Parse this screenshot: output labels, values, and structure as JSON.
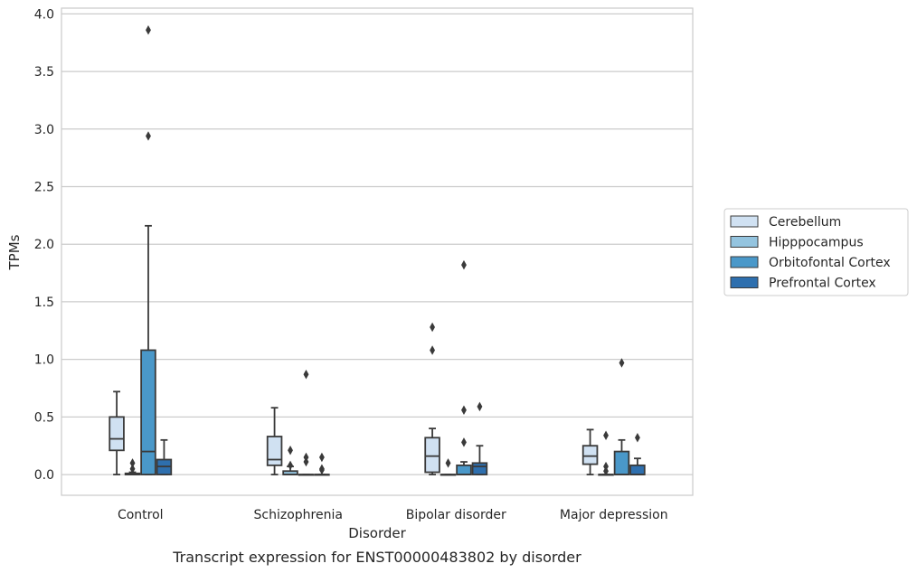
{
  "chart_data": {
    "type": "box",
    "xlabel": "Disorder",
    "ylabel": "TPMs",
    "caption": "Transcript expression for ENST00000483802 by disorder",
    "ylim": [
      -0.18,
      4.05
    ],
    "yticks": [
      "0.0",
      "0.5",
      "1.0",
      "1.5",
      "2.0",
      "2.5",
      "3.0",
      "3.5",
      "4.0"
    ],
    "grid": "horizontal",
    "legend_position": "right",
    "categories": [
      "Control",
      "Schizophrenia",
      "Bipolar disorder",
      "Major depression"
    ],
    "series": [
      {
        "name": "Cerebellum",
        "color": "#d0e1f2",
        "boxes": [
          {
            "min": 0.0,
            "q1": 0.21,
            "median": 0.31,
            "q3": 0.5,
            "max": 0.72,
            "outliers": []
          },
          {
            "min": 0.0,
            "q1": 0.08,
            "median": 0.13,
            "q3": 0.33,
            "max": 0.58,
            "outliers": []
          },
          {
            "min": 0.0,
            "q1": 0.02,
            "median": 0.16,
            "q3": 0.32,
            "max": 0.4,
            "outliers": [
              1.08,
              1.28
            ]
          },
          {
            "min": 0.0,
            "q1": 0.09,
            "median": 0.16,
            "q3": 0.25,
            "max": 0.39,
            "outliers": []
          }
        ]
      },
      {
        "name": "Hipppocampus",
        "color": "#94c4df",
        "boxes": [
          {
            "min": 0.0,
            "q1": 0.0,
            "median": 0.0,
            "q3": 0.01,
            "max": 0.02,
            "outliers": [
              0.05,
              0.1
            ]
          },
          {
            "min": 0.0,
            "q1": 0.0,
            "median": 0.0,
            "q3": 0.03,
            "max": 0.07,
            "outliers": [
              0.08,
              0.21
            ]
          },
          {
            "min": 0.0,
            "q1": 0.0,
            "median": 0.0,
            "q3": 0.0,
            "max": 0.0,
            "outliers": [
              0.1
            ]
          },
          {
            "min": 0.0,
            "q1": 0.0,
            "median": 0.0,
            "q3": 0.0,
            "max": 0.0,
            "outliers": [
              0.03,
              0.07,
              0.34
            ]
          }
        ]
      },
      {
        "name": "Orbitofontal Cortex",
        "color": "#4a98c9",
        "boxes": [
          {
            "min": 0.0,
            "q1": 0.0,
            "median": 0.2,
            "q3": 1.08,
            "max": 2.16,
            "outliers": [
              2.94,
              3.86
            ]
          },
          {
            "min": 0.0,
            "q1": 0.0,
            "median": 0.0,
            "q3": 0.0,
            "max": 0.0,
            "outliers": [
              0.11,
              0.15,
              0.87
            ]
          },
          {
            "min": 0.0,
            "q1": 0.0,
            "median": 0.0,
            "q3": 0.08,
            "max": 0.11,
            "outliers": [
              0.28,
              0.56,
              1.82
            ]
          },
          {
            "min": 0.0,
            "q1": 0.0,
            "median": 0.0,
            "q3": 0.2,
            "max": 0.3,
            "outliers": [
              0.97
            ]
          }
        ]
      },
      {
        "name": "Prefrontal Cortex",
        "color": "#2e6fae",
        "boxes": [
          {
            "min": 0.0,
            "q1": 0.0,
            "median": 0.07,
            "q3": 0.13,
            "max": 0.3,
            "outliers": []
          },
          {
            "min": 0.0,
            "q1": 0.0,
            "median": 0.0,
            "q3": 0.0,
            "max": 0.0,
            "outliers": [
              0.04,
              0.05,
              0.15
            ]
          },
          {
            "min": 0.0,
            "q1": 0.0,
            "median": 0.07,
            "q3": 0.1,
            "max": 0.25,
            "outliers": [
              0.59
            ]
          },
          {
            "min": 0.0,
            "q1": 0.0,
            "median": 0.0,
            "q3": 0.08,
            "max": 0.14,
            "outliers": [
              0.32
            ]
          }
        ]
      }
    ]
  }
}
